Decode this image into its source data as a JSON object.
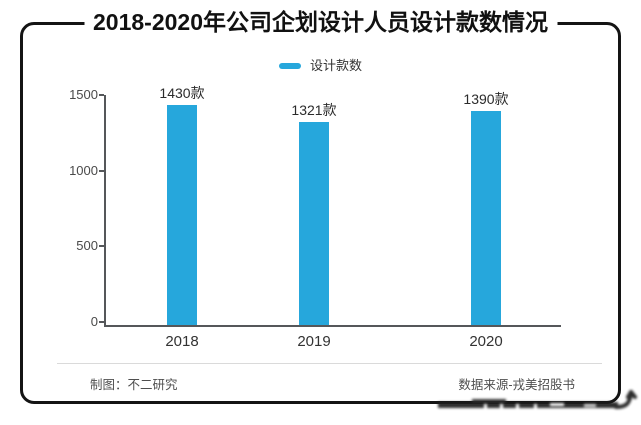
{
  "title": "2018-2020年公司企划设计人员设计款数情况",
  "legend": {
    "label": "设计款数",
    "marker_color": "#26a7dc"
  },
  "chart_data": {
    "type": "bar",
    "title": "2018-2020年公司企划设计人员设计款数情况",
    "categories": [
      "2018",
      "2019",
      "2020"
    ],
    "series": [
      {
        "name": "设计款数",
        "values": [
          1430,
          1321,
          1390
        ]
      }
    ],
    "values": [
      1430,
      1321,
      1390
    ],
    "value_labels": [
      "1430款",
      "1321款",
      "1390款"
    ],
    "xlabel": "",
    "ylabel": "",
    "ylim": [
      0,
      1500
    ],
    "yticks": [
      0,
      500,
      1000,
      1500
    ],
    "ytick_labels_top_to_bottom": [
      "1500",
      "1000",
      "500",
      "0"
    ],
    "legend_position": "top-center",
    "grid": false,
    "bar_color": "#26a7dc"
  },
  "footer": {
    "left": "制图：不二研究",
    "right": "数据来源-戎美招股书"
  },
  "colors": {
    "bar": "#26a7dc",
    "frame": "#141414",
    "axis": "#55575a",
    "tick_text": "#4a4a4a",
    "footer_text": "#4f4f4f",
    "divider": "#dadada",
    "background": "#ffffff"
  }
}
